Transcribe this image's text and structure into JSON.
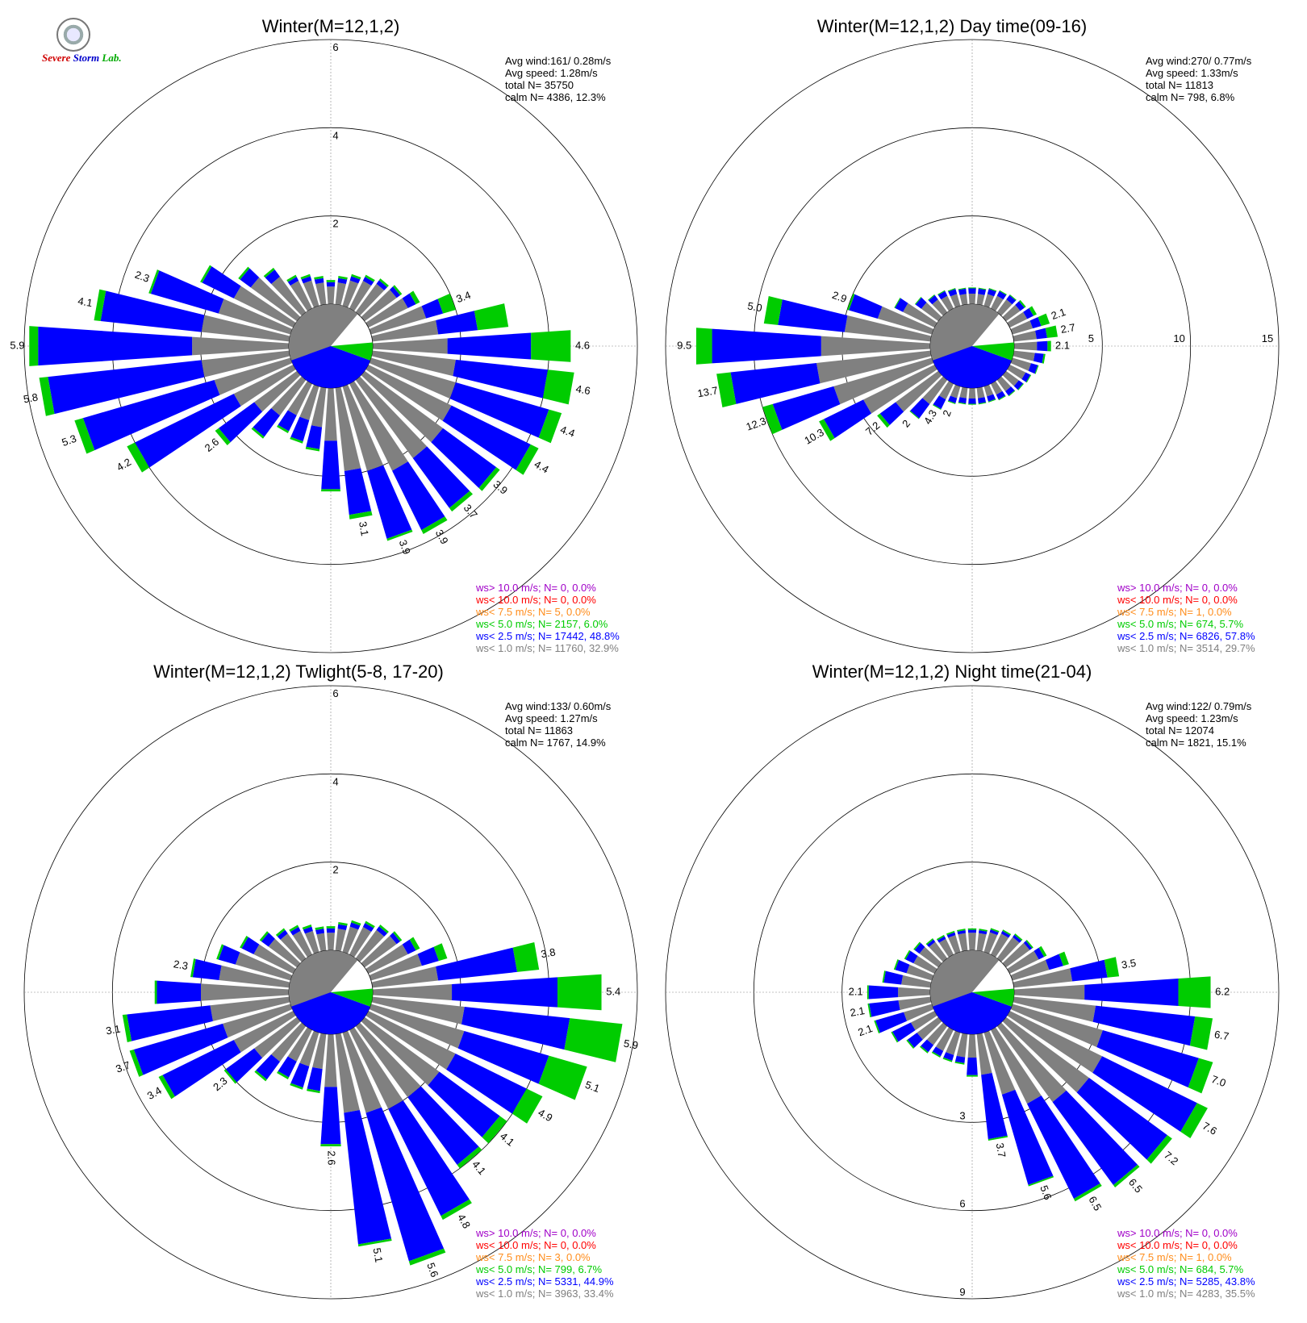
{
  "logo": {
    "line1": "Severe",
    "line2": "Storm",
    "line3": "Lab."
  },
  "legend_colors": {
    "gt10": "#a000c8",
    "lt10": "#ff0000",
    "lt75": "#ff8c1a",
    "lt5": "#00cc00",
    "lt25": "#0000ff",
    "lt1": "#808080"
  },
  "chart_data": [
    {
      "type": "wind-rose",
      "title": "Winter(M=12,1,2)",
      "stats": [
        "Avg wind:161/ 0.28m/s",
        "Avg speed: 1.28m/s",
        "total N=      35750",
        "calm N=   4386,  12.3%"
      ],
      "rmax": 6,
      "ring_labels": [
        "2",
        "4",
        "6"
      ],
      "ring_label_side": "top",
      "ring_values": [
        2,
        4,
        6
      ],
      "calm_pct": 12.3,
      "legend": [
        "ws> 10.0 m/s; N=     0,  0.0%",
        "ws< 10.0 m/s; N=     0,  0.0%",
        "ws<  7.5 m/s; N=     5,  0.0%",
        "ws<  5.0 m/s; N=  2157,  6.0%",
        "ws<  2.5 m/s; N= 17442, 48.8%",
        "ws<  1.0 m/s; N= 11760, 32.9%"
      ],
      "directions": [
        0,
        10,
        20,
        30,
        40,
        50,
        60,
        70,
        80,
        90,
        100,
        110,
        120,
        130,
        140,
        150,
        160,
        170,
        180,
        190,
        200,
        210,
        220,
        230,
        240,
        250,
        260,
        270,
        280,
        290,
        300,
        310,
        320,
        330,
        340,
        350
      ],
      "gray": [
        0.4,
        0.5,
        0.6,
        0.7,
        0.8,
        0.9,
        1.0,
        1.3,
        1.5,
        1.7,
        1.9,
        2.0,
        2.1,
        2.2,
        2.2,
        2.2,
        2.0,
        1.9,
        1.2,
        0.9,
        0.8,
        0.8,
        1.0,
        1.2,
        1.5,
        1.8,
        2.0,
        2.2,
        2.0,
        1.7,
        1.5,
        1.3,
        1.0,
        0.7,
        0.6,
        0.5
      ],
      "blue": [
        0.1,
        0.1,
        0.1,
        0.1,
        0.1,
        0.1,
        0.2,
        0.4,
        0.9,
        1.9,
        2.1,
        2.2,
        2.0,
        1.5,
        1.4,
        1.5,
        1.6,
        1.0,
        1.1,
        0.5,
        0.5,
        0.4,
        0.6,
        1.0,
        2.5,
        3.1,
        3.5,
        3.5,
        2.3,
        1.6,
        0.8,
        0.3,
        0.2,
        0.1,
        0.1,
        0.1
      ],
      "green": [
        0.05,
        0.05,
        0.05,
        0.05,
        0.05,
        0.05,
        0.1,
        0.3,
        0.7,
        0.9,
        0.6,
        0.3,
        0.2,
        0.1,
        0.1,
        0.1,
        0.05,
        0.1,
        0.05,
        0.05,
        0.05,
        0.05,
        0.05,
        0.1,
        0.2,
        0.2,
        0.2,
        0.2,
        0.15,
        0.05,
        0.05,
        0.05,
        0.05,
        0.05,
        0.05,
        0.05
      ],
      "bar_labels": {
        "70": "3.4",
        "90": "4.6",
        "100": "4.6",
        "110": "4.4",
        "120": "4.4",
        "130": "3.9",
        "140": "3.7",
        "150": "3.9",
        "160": "3.9",
        "170": "3.1",
        "230": "2.6",
        "240": "4.2",
        "250": "5.3",
        "260": "5.8",
        "270": "5.9",
        "280": "4.1",
        "290": "2.3"
      }
    },
    {
      "type": "wind-rose",
      "title": "Winter(M=12,1,2) Day time(09-16)",
      "stats": [
        "Avg wind:270/ 0.77m/s",
        "Avg speed: 1.33m/s",
        "total N=      11813",
        "calm N=    798,   6.8%"
      ],
      "rmax": 15,
      "ring_labels": [
        "5",
        "10",
        "15"
      ],
      "ring_label_side": "right",
      "ring_values": [
        5,
        10,
        15
      ],
      "calm_pct": 6.8,
      "legend": [
        "ws> 10.0 m/s; N=     0,  0.0%",
        "ws< 10.0 m/s; N=     0,  0.0%",
        "ws<  7.5 m/s; N=     1,  0.0%",
        "ws<  5.0 m/s; N=   674,  5.7%",
        "ws<  2.5 m/s; N=  6826, 57.8%",
        "ws<  1.0 m/s; N=  3514, 29.7%"
      ],
      "directions": [
        0,
        10,
        20,
        30,
        40,
        50,
        60,
        70,
        80,
        90,
        100,
        110,
        120,
        130,
        140,
        150,
        160,
        170,
        180,
        190,
        200,
        210,
        220,
        230,
        240,
        250,
        260,
        270,
        280,
        290,
        300,
        310,
        320,
        330,
        340,
        350
      ],
      "gray": [
        0.6,
        0.6,
        0.7,
        0.8,
        0.9,
        1.0,
        1.1,
        1.2,
        1.3,
        1.3,
        1.2,
        1.1,
        1.0,
        0.9,
        0.8,
        0.7,
        0.6,
        0.6,
        0.6,
        0.6,
        0.7,
        1.0,
        1.7,
        3.0,
        4.5,
        5.8,
        6.5,
        6.2,
        4.9,
        3.2,
        2.0,
        1.2,
        0.9,
        0.8,
        0.7,
        0.6
      ],
      "blue": [
        0.3,
        0.3,
        0.3,
        0.3,
        0.3,
        0.3,
        0.4,
        0.5,
        0.6,
        0.6,
        0.5,
        0.4,
        0.3,
        0.3,
        0.3,
        0.3,
        0.3,
        0.3,
        0.3,
        0.3,
        0.3,
        0.6,
        1.0,
        1.1,
        2.5,
        3.6,
        4.9,
        6.2,
        3.8,
        1.7,
        0.5,
        0.4,
        0.3,
        0.3,
        0.3,
        0.3
      ],
      "green": [
        0.05,
        0.05,
        0.05,
        0.05,
        0.05,
        0.1,
        0.2,
        0.5,
        0.6,
        0.2,
        0.1,
        0.05,
        0.05,
        0.05,
        0.05,
        0.05,
        0.05,
        0.05,
        0.05,
        0.05,
        0.05,
        0.05,
        0.05,
        0.2,
        0.3,
        0.6,
        0.8,
        0.9,
        0.8,
        0.1,
        0.05,
        0.05,
        0.05,
        0.05,
        0.05,
        0.05
      ],
      "bar_labels": {
        "70": "2.1",
        "80": "2.7",
        "90": "2.1",
        "200": "2",
        "210": "4.3",
        "220": "2",
        "230": "7.2",
        "240": "10.3",
        "250": "12.3",
        "260": "13.7",
        "270": "9.5",
        "280": "5.0",
        "290": "2.9"
      }
    },
    {
      "type": "wind-rose",
      "title": "Winter(M=12,1,2) Twlight(5-8, 17-20)",
      "stats": [
        "Avg wind:133/ 0.60m/s",
        "Avg speed: 1.27m/s",
        "total N=      11863",
        "calm N=   1767,  14.9%"
      ],
      "rmax": 6,
      "ring_labels": [
        "2",
        "4",
        "6"
      ],
      "ring_label_side": "top",
      "ring_values": [
        2,
        4,
        6
      ],
      "calm_pct": 14.9,
      "legend": [
        "ws> 10.0 m/s; N=     0,  0.0%",
        "ws< 10.0 m/s; N=     0,  0.0%",
        "ws<  7.5 m/s; N=     3,  0.0%",
        "ws<  5.0 m/s; N=   799,  6.7%",
        "ws<  2.5 m/s; N=  5331, 44.9%",
        "ws<  1.0 m/s; N=  3963, 33.4%"
      ],
      "directions": [
        0,
        10,
        20,
        30,
        40,
        50,
        60,
        70,
        80,
        90,
        100,
        110,
        120,
        130,
        140,
        150,
        160,
        170,
        180,
        190,
        200,
        210,
        220,
        230,
        240,
        250,
        260,
        270,
        280,
        290,
        300,
        310,
        320,
        330,
        340,
        350
      ],
      "gray": [
        0.4,
        0.5,
        0.6,
        0.7,
        0.8,
        0.9,
        1.0,
        1.2,
        1.5,
        1.8,
        2.1,
        2.2,
        2.2,
        2.1,
        2.0,
        2.0,
        1.9,
        1.8,
        1.2,
        0.8,
        0.8,
        0.8,
        1.0,
        1.2,
        1.5,
        1.6,
        1.8,
        2.0,
        1.6,
        1.3,
        1.0,
        0.8,
        0.7,
        0.6,
        0.5,
        0.4
      ],
      "blue": [
        0.1,
        0.1,
        0.1,
        0.1,
        0.1,
        0.1,
        0.2,
        0.4,
        1.8,
        2.4,
        2.4,
        2.0,
        1.8,
        1.7,
        1.9,
        2.7,
        3.5,
        3.0,
        1.3,
        0.5,
        0.5,
        0.4,
        0.5,
        0.8,
        1.8,
        2.1,
        1.9,
        1.0,
        0.6,
        0.4,
        0.3,
        0.2,
        0.1,
        0.1,
        0.1,
        0.1
      ],
      "green": [
        0.05,
        0.05,
        0.05,
        0.05,
        0.05,
        0.05,
        0.1,
        0.2,
        0.5,
        1.0,
        1.2,
        0.9,
        0.4,
        0.2,
        0.1,
        0.1,
        0.1,
        0.05,
        0.05,
        0.05,
        0.05,
        0.05,
        0.05,
        0.05,
        0.1,
        0.1,
        0.1,
        0.05,
        0.05,
        0.05,
        0.05,
        0.05,
        0.05,
        0.05,
        0.05,
        0.05
      ],
      "bar_labels": {
        "80": "3.8",
        "90": "5.4",
        "100": "5.9",
        "110": "5.1",
        "120": "4.9",
        "130": "4.1",
        "140": "4.1",
        "150": "4.8",
        "160": "5.6",
        "170": "5.1",
        "180": "2.6",
        "230": "2.3",
        "240": "3.4",
        "250": "3.7",
        "260": "3.1",
        "280": "2.3"
      }
    },
    {
      "type": "wind-rose",
      "title": "Winter(M=12,1,2) Night time(21-04)",
      "stats": [
        "Avg wind:122/ 0.79m/s",
        "Avg speed: 1.23m/s",
        "total N=      12074",
        "calm N=   1821,  15.1%"
      ],
      "rmax": 9,
      "ring_labels": [
        "3",
        "6",
        "9"
      ],
      "ring_label_side": "bottom",
      "ring_values": [
        3,
        6,
        9
      ],
      "calm_pct": 15.1,
      "legend": [
        "ws> 10.0 m/s; N=     0,  0.0%",
        "ws< 10.0 m/s; N=     0,  0.0%",
        "ws<  7.5 m/s; N=     1,  0.0%",
        "ws<  5.0 m/s; N=   684,  5.7%",
        "ws<  2.5 m/s; N=  5285, 43.8%",
        "ws<  1.0 m/s; N=  4283, 35.5%"
      ],
      "directions": [
        0,
        10,
        20,
        30,
        40,
        50,
        60,
        70,
        80,
        90,
        100,
        110,
        120,
        130,
        140,
        150,
        160,
        170,
        180,
        190,
        200,
        210,
        220,
        230,
        240,
        250,
        260,
        270,
        280,
        290,
        300,
        310,
        320,
        330,
        340,
        350
      ],
      "gray": [
        0.6,
        0.6,
        0.7,
        0.8,
        0.9,
        1.0,
        1.1,
        1.3,
        2.0,
        2.4,
        2.8,
        3.2,
        3.5,
        3.5,
        3.2,
        2.8,
        2.2,
        1.4,
        0.8,
        0.8,
        0.8,
        0.8,
        0.8,
        0.9,
        0.9,
        1.0,
        1.1,
        1.1,
        1.0,
        0.9,
        0.8,
        0.8,
        0.7,
        0.6,
        0.6,
        0.6
      ],
      "blue": [
        0.1,
        0.1,
        0.1,
        0.1,
        0.1,
        0.1,
        0.2,
        0.5,
        1.2,
        3.2,
        3.4,
        3.4,
        3.6,
        3.3,
        3.5,
        3.6,
        3.2,
        2.2,
        0.6,
        0.2,
        0.2,
        0.2,
        0.3,
        0.4,
        0.7,
        1.0,
        1.0,
        1.0,
        0.6,
        0.4,
        0.3,
        0.2,
        0.1,
        0.1,
        0.1,
        0.1
      ],
      "green": [
        0.05,
        0.05,
        0.05,
        0.05,
        0.05,
        0.05,
        0.1,
        0.2,
        0.4,
        1.1,
        0.6,
        0.5,
        0.4,
        0.2,
        0.1,
        0.1,
        0.05,
        0.05,
        0.05,
        0.05,
        0.05,
        0.05,
        0.05,
        0.05,
        0.05,
        0.05,
        0.05,
        0.05,
        0.05,
        0.05,
        0.05,
        0.05,
        0.05,
        0.05,
        0.05,
        0.05
      ],
      "bar_labels": {
        "80": "3.5",
        "90": "6.2",
        "100": "6.7",
        "110": "7.0",
        "120": "7.6",
        "130": "7.2",
        "140": "6.5",
        "150": "6.5",
        "160": "5.6",
        "170": "3.7",
        "250": "2.1",
        "260": "2.1",
        "270": "2.1"
      }
    }
  ]
}
